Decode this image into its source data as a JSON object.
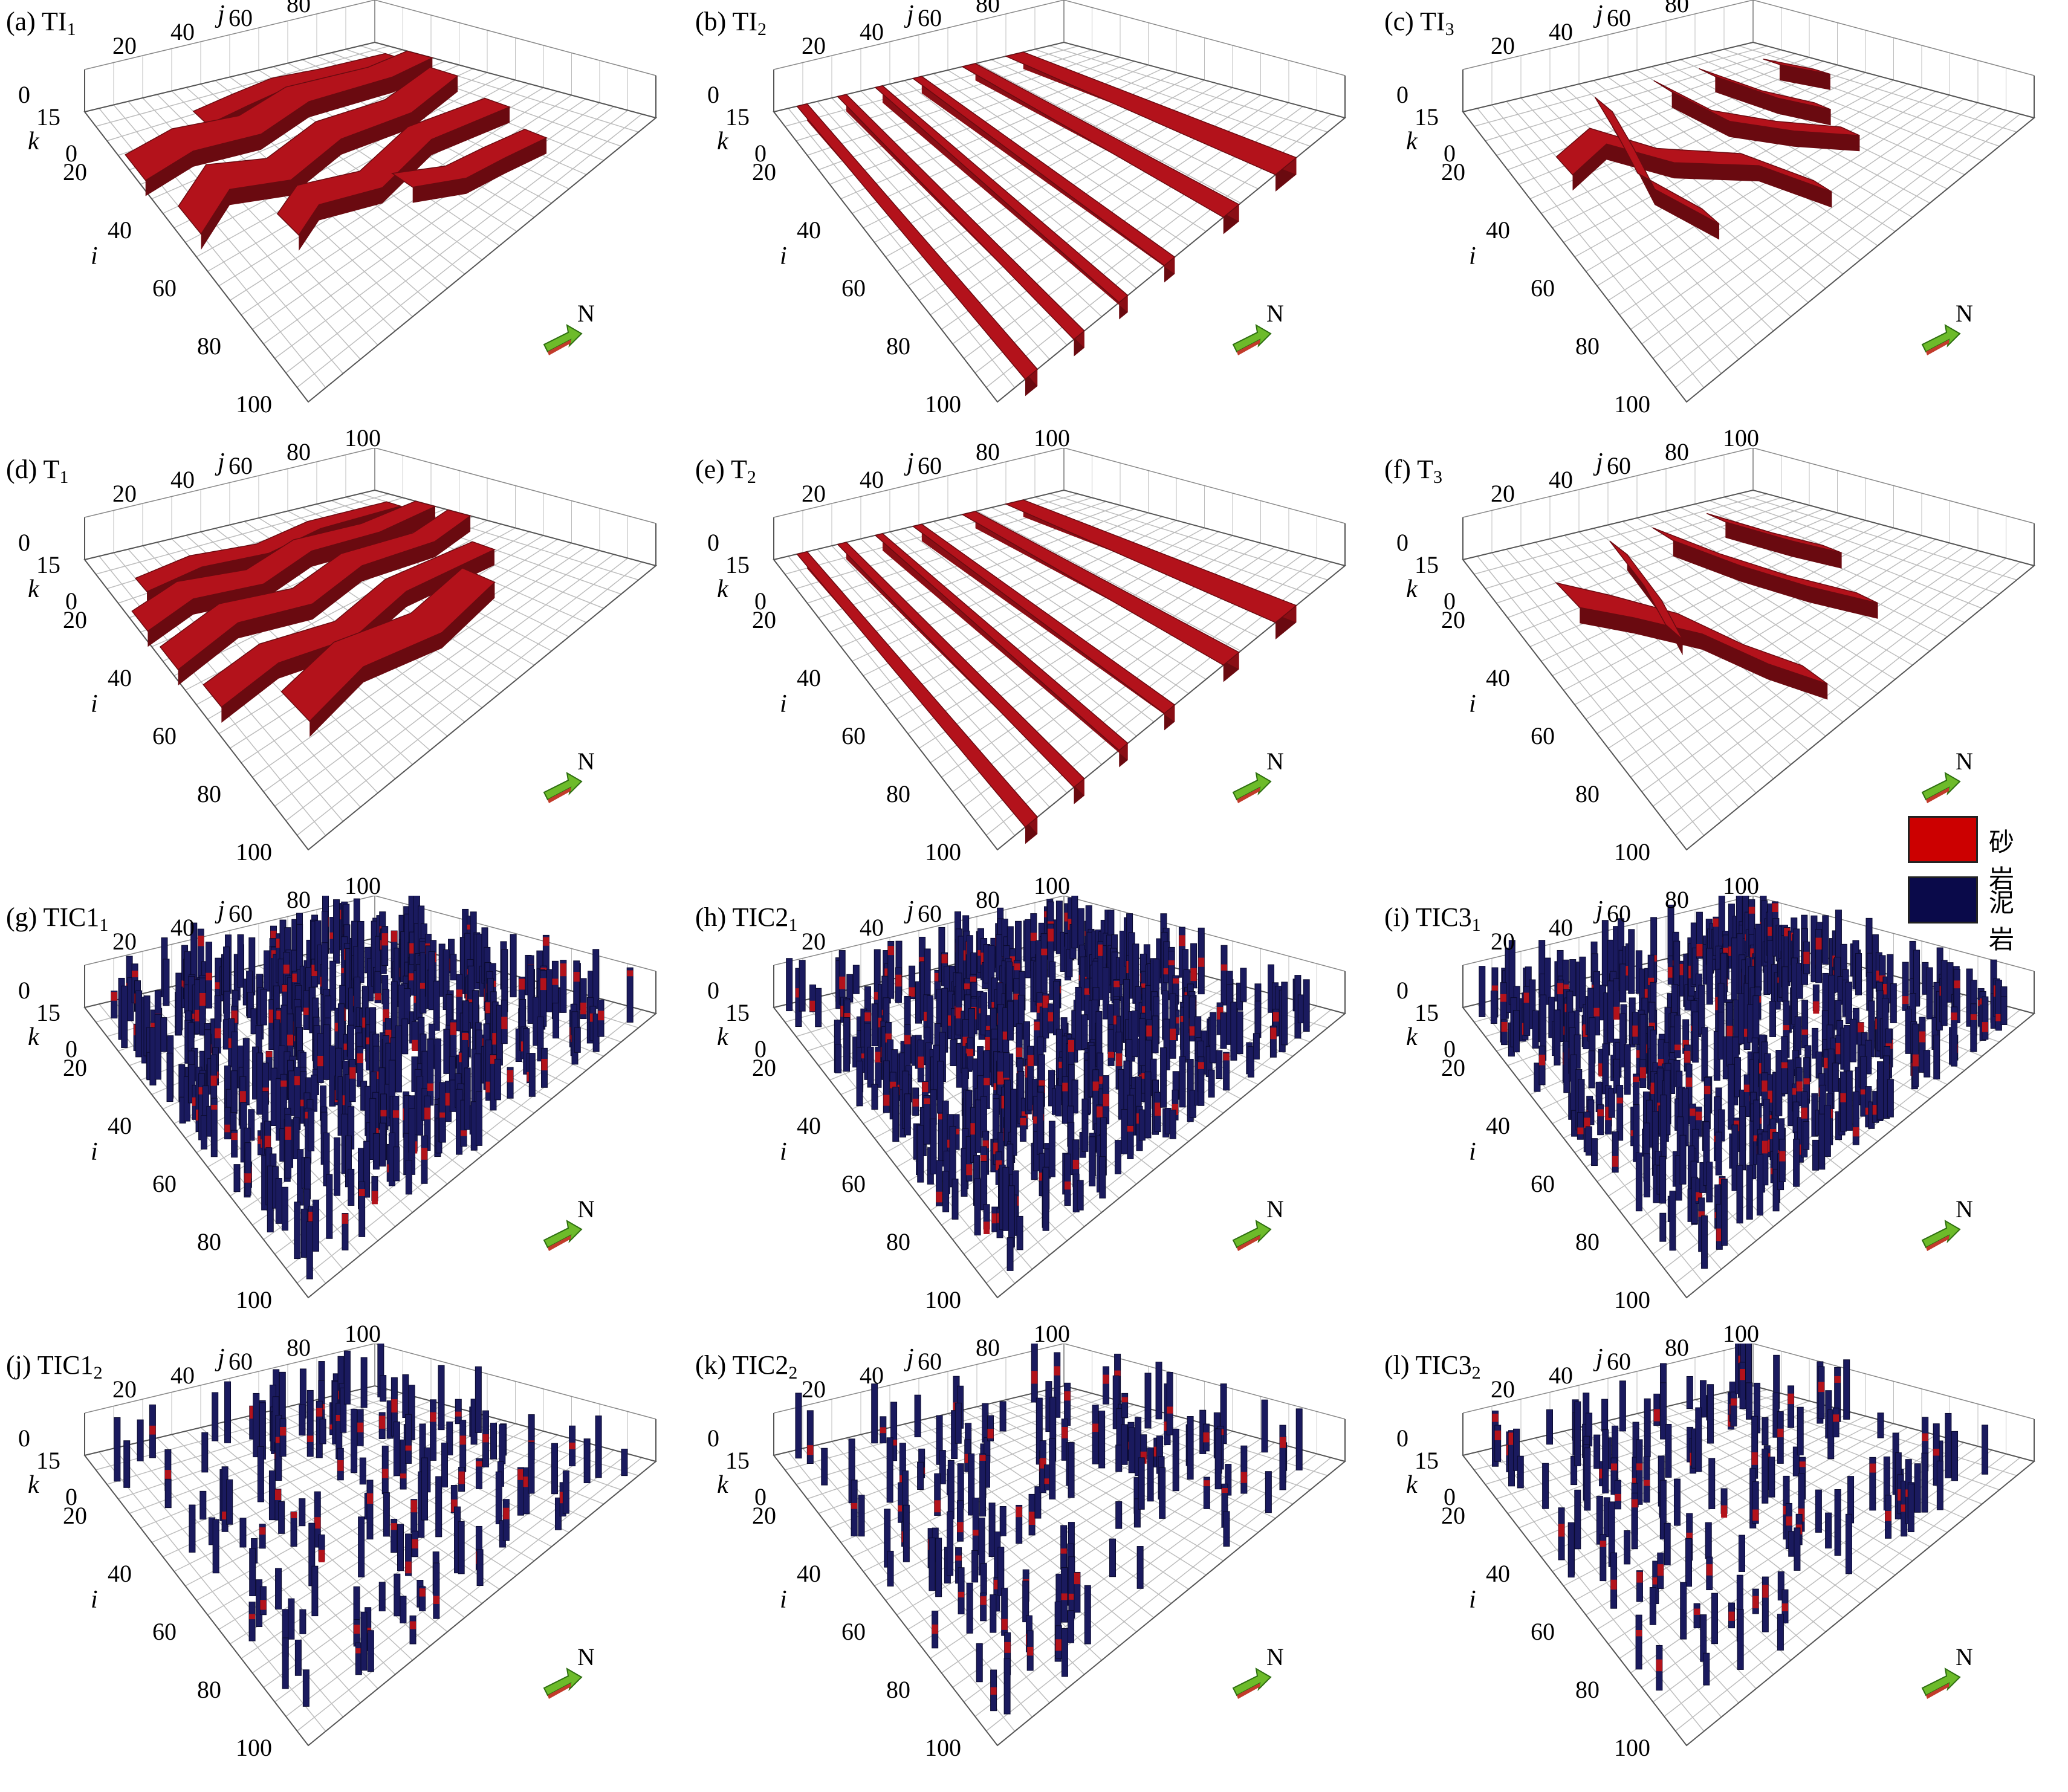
{
  "panels": [
    {
      "id": "a",
      "label": "(a) TI",
      "sub": "1",
      "kind": "channels",
      "variant": "wavy"
    },
    {
      "id": "b",
      "label": "(b) TI",
      "sub": "2",
      "kind": "bars",
      "variant": "straight"
    },
    {
      "id": "c",
      "label": "(c) TI",
      "sub": "3",
      "kind": "channels",
      "variant": "branch"
    },
    {
      "id": "d",
      "label": "(d) T",
      "sub": "1",
      "kind": "channels",
      "variant": "wavy2"
    },
    {
      "id": "e",
      "label": "(e) T",
      "sub": "2",
      "kind": "bars",
      "variant": "straight"
    },
    {
      "id": "f",
      "label": "(f) T",
      "sub": "3",
      "kind": "channels",
      "variant": "branch2"
    },
    {
      "id": "g",
      "label": "(g) TIC1",
      "sub": "1",
      "kind": "wells",
      "variant": "dense"
    },
    {
      "id": "h",
      "label": "(h) TIC2",
      "sub": "1",
      "kind": "wells",
      "variant": "dense"
    },
    {
      "id": "i",
      "label": "(i) TIC3",
      "sub": "1",
      "kind": "wells",
      "variant": "dense"
    },
    {
      "id": "j",
      "label": "(j) TIC1",
      "sub": "2",
      "kind": "wells",
      "variant": "sparse"
    },
    {
      "id": "k",
      "label": "(k) TIC2",
      "sub": "2",
      "kind": "wells",
      "variant": "sparse"
    },
    {
      "id": "l",
      "label": "(l) TIC3",
      "sub": "2",
      "kind": "wells",
      "variant": "sparse"
    }
  ],
  "axes": {
    "j_label": "j",
    "i_label": "i",
    "k_label": "k",
    "j_ticks": [
      "20",
      "40",
      "60",
      "80",
      "100"
    ],
    "i_ticks": [
      "0",
      "20",
      "40",
      "60",
      "80",
      "100"
    ],
    "k_ticks": [
      "15",
      "0"
    ],
    "north": "N"
  },
  "legend": [
    {
      "label": "砂岩",
      "color": "#cc0000"
    },
    {
      "label": "泥岩",
      "color": "#0a0a4a"
    }
  ],
  "colors": {
    "sand": "#b3121b",
    "sand_dark": "#6a0a10",
    "mud": "#1a1a5e",
    "mud_dark": "#0a0a2e",
    "grid": "#bdbdbd",
    "arrow": "#6dbb2a"
  }
}
